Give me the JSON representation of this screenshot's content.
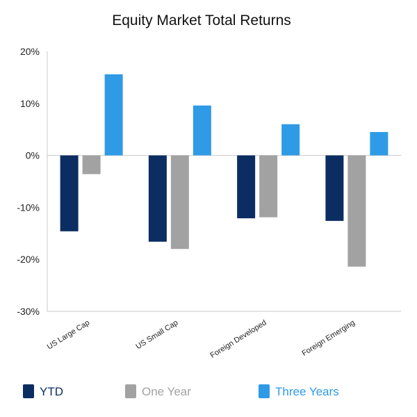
{
  "chart_data": {
    "type": "bar",
    "title": "Equity Market Total Returns",
    "categories": [
      "US Large Cap",
      "US Small Cap",
      "Foreign Developed",
      "Foreign Emerging"
    ],
    "series": [
      {
        "name": "YTD",
        "values": [
          -14.6,
          -16.6,
          -12.1,
          -12.6
        ],
        "color": "#0b2d62"
      },
      {
        "name": "One Year",
        "values": [
          -3.6,
          -18.0,
          -11.9,
          -21.4
        ],
        "color": "#a2a2a2"
      },
      {
        "name": "Three Years",
        "values": [
          15.6,
          9.6,
          6.0,
          4.5
        ],
        "color": "#2f9be6"
      }
    ],
    "yticks": [
      "20%",
      "10%",
      "0%",
      "-10%",
      "-20%",
      "-30%"
    ],
    "ylim": [
      -30,
      20
    ],
    "ylabel": "",
    "xlabel": "",
    "grid": false,
    "legend_position": "bottom",
    "axis_color": "#c8c8c8"
  }
}
